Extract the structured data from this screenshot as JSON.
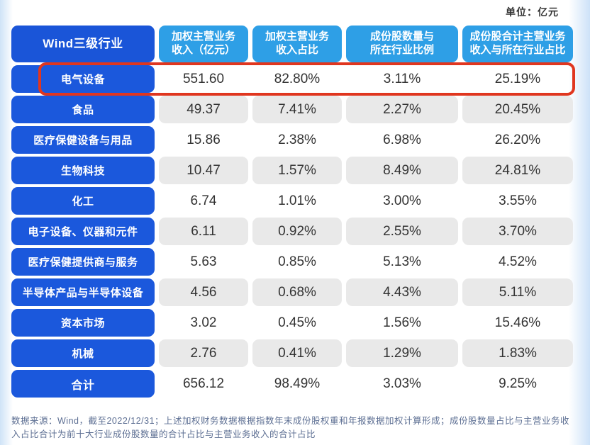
{
  "unit_label": "单位：亿元",
  "chart_data": {
    "type": "table",
    "columns": [
      "Wind三级行业",
      "加权主营业务\n收入（亿元）",
      "加权主营业务\n收入占比",
      "成份股数量与\n所在行业比例",
      "成份股合计主营业务\n收入与所在行业占比"
    ],
    "rows": [
      {
        "industry": "电气设备",
        "values": [
          "551.60",
          "82.80%",
          "3.11%",
          "25.19%"
        ],
        "highlighted": true
      },
      {
        "industry": "食品",
        "values": [
          "49.37",
          "7.41%",
          "2.27%",
          "20.45%"
        ],
        "highlighted": false
      },
      {
        "industry": "医疗保健设备与用品",
        "values": [
          "15.86",
          "2.38%",
          "6.98%",
          "26.20%"
        ],
        "highlighted": false
      },
      {
        "industry": "生物科技",
        "values": [
          "10.47",
          "1.57%",
          "8.49%",
          "24.81%"
        ],
        "highlighted": false
      },
      {
        "industry": "化工",
        "values": [
          "6.74",
          "1.01%",
          "3.00%",
          "3.55%"
        ],
        "highlighted": false
      },
      {
        "industry": "电子设备、仪器和元件",
        "values": [
          "6.11",
          "0.92%",
          "2.55%",
          "3.70%"
        ],
        "highlighted": false
      },
      {
        "industry": "医疗保健提供商与服务",
        "values": [
          "5.63",
          "0.85%",
          "5.13%",
          "4.52%"
        ],
        "highlighted": false
      },
      {
        "industry": "半导体产品与半导体设备",
        "values": [
          "4.56",
          "0.68%",
          "4.43%",
          "5.11%"
        ],
        "highlighted": false
      },
      {
        "industry": "资本市场",
        "values": [
          "3.02",
          "0.45%",
          "1.56%",
          "15.46%"
        ],
        "highlighted": false
      },
      {
        "industry": "机械",
        "values": [
          "2.76",
          "0.41%",
          "1.29%",
          "1.83%"
        ],
        "highlighted": false
      },
      {
        "industry": "合计",
        "values": [
          "656.12",
          "98.49%",
          "3.03%",
          "9.25%"
        ],
        "highlighted": false
      }
    ],
    "highlighted_row": "电气设备",
    "legend_position": "none",
    "grid": false
  },
  "footnote": "数据来源：Wind，截至2022/12/31；上述加权财务数据根据指数年末成份股权重和年报数据加权计算形成；成份股数量占比与主营业务收入占比合计为前十大行业成份股数量的合计占比与主营业务收入的合计占比",
  "colors": {
    "row_blue": "#1b58dc",
    "header_dark_blue": "#1a55d8",
    "header_light_blue": "#2e9fe6",
    "cell_gray": "#e9e9e9",
    "highlight_red": "#e0361f",
    "value_text": "#333333",
    "footnote_text": "#5d6f93"
  }
}
